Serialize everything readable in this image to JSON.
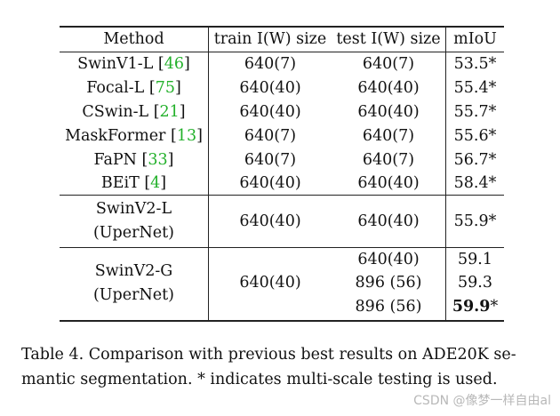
{
  "table": {
    "headers": [
      "Method",
      "train I(W) size",
      "test I(W) size",
      "mIoU"
    ],
    "rows": [
      {
        "method": "SwinV1-L",
        "cite": "46",
        "train": "640(7)",
        "test": "640(7)",
        "miou": "53.5*"
      },
      {
        "method": "Focal-L",
        "cite": "75",
        "train": "640(40)",
        "test": "640(40)",
        "miou": "55.4*"
      },
      {
        "method": "CSwin-L",
        "cite": "21",
        "train": "640(40)",
        "test": "640(40)",
        "miou": "55.7*"
      },
      {
        "method": "MaskFormer",
        "cite": "13",
        "train": "640(7)",
        "test": "640(7)",
        "miou": "55.6*"
      },
      {
        "method": "FaPN",
        "cite": "33",
        "train": "640(7)",
        "test": "640(7)",
        "miou": "56.7*"
      },
      {
        "method": "BEiT",
        "cite": "4",
        "train": "640(40)",
        "test": "640(40)",
        "miou": "58.4*"
      }
    ],
    "swinv2_l": {
      "name": "SwinV2-L",
      "sub": "(UperNet)",
      "train": "640(40)",
      "test": "640(40)",
      "miou": "55.9*"
    },
    "swinv2_g": {
      "name": "SwinV2-G",
      "sub": "(UperNet)",
      "train": "640(40)",
      "tests": [
        "640(40)",
        "896 (56)",
        "896 (56)"
      ],
      "mious": [
        "59.1",
        "59.3",
        "59.9"
      ],
      "best_suffix": "*"
    }
  },
  "caption": {
    "line1": "Table 4. Comparison with previous best results on ADE20K se-",
    "line2": "mantic segmentation. * indicates multi-scale testing is used."
  },
  "watermark": "CSDN @像梦一样自由al",
  "colors": {
    "citation": "#22b02a"
  }
}
